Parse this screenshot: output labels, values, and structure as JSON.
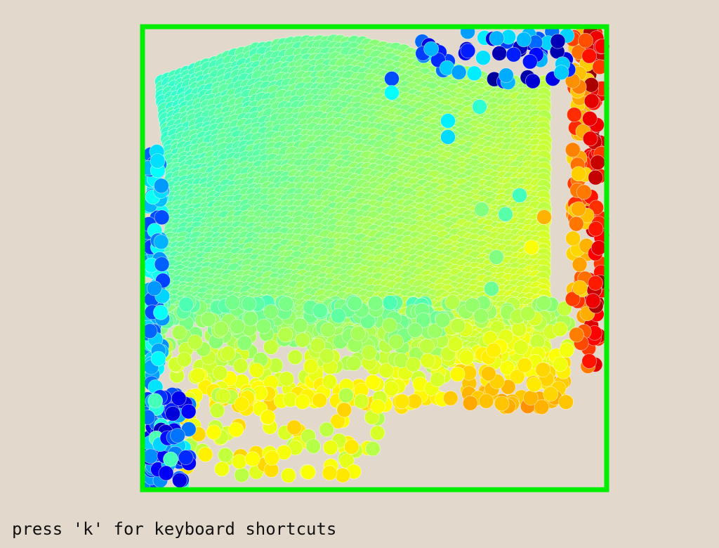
{
  "app": {
    "background_color": "#e2d8cb",
    "frame_color": "#00ee00",
    "hint_text": "press 'k' for keyboard shortcuts"
  },
  "visualization": {
    "type": "particle-field",
    "colormap": "jet",
    "marker_shape": "circle"
  }
}
